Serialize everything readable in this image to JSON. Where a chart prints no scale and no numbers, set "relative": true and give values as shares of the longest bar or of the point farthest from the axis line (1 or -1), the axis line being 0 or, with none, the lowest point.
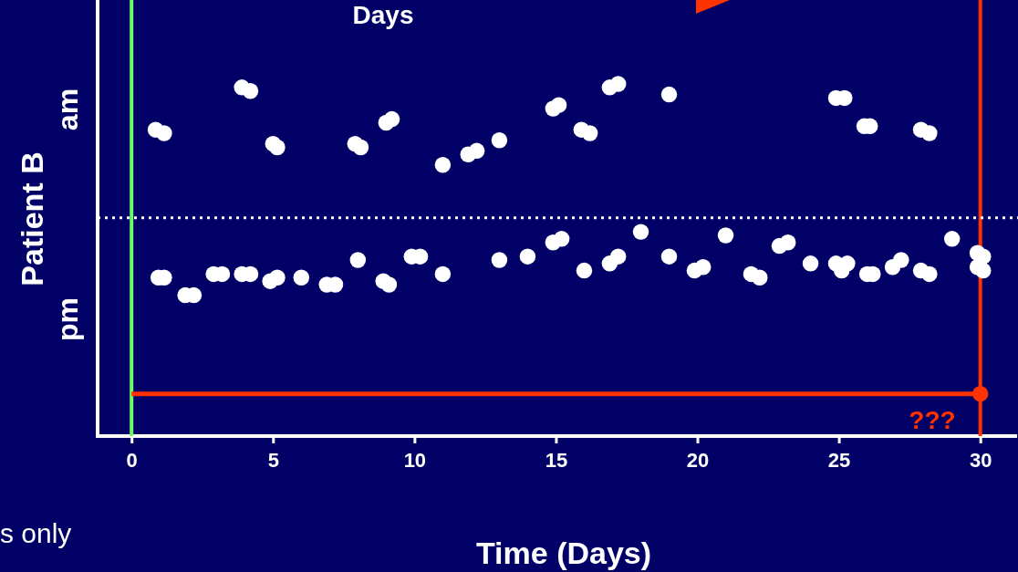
{
  "chart_data": {
    "type": "scatter",
    "title": "Days",
    "xlabel": "Time (Days)",
    "ylabel": "Patient B",
    "relative": true,
    "marker": "circle",
    "xlim": [
      -1.2,
      31.3
    ],
    "xticks": [
      0,
      5,
      10,
      15,
      20,
      25,
      30
    ],
    "annotations": [
      "am",
      "pm",
      "???",
      "s only"
    ],
    "ref_lines": [
      {
        "axis": "x",
        "value": 0,
        "color": "#66ff66",
        "line_style": "solid"
      },
      {
        "axis": "x",
        "value": 30,
        "color": "#ff3300",
        "line_style": "solid"
      },
      {
        "axis": "y",
        "value": 0.62,
        "color": "#ffffff",
        "line_style": "dotted"
      }
    ],
    "series": [
      {
        "type": "scatter",
        "color": "#ffffff",
        "x": [
          0.85,
          1.15,
          3.9,
          4.2,
          5,
          5.15,
          7.9,
          8.1,
          9,
          9.2,
          11,
          11.9,
          12.2,
          13,
          14.9,
          15.1,
          15.9,
          16.2,
          16.9,
          17.2,
          19,
          24.9,
          25.2,
          25.9,
          26.1,
          27.9,
          28.2,
          0.95,
          1.15,
          1.9,
          2.2,
          2.9,
          3.2,
          3.9,
          4.2,
          4.9,
          5.15,
          6,
          6.9,
          7.2,
          8,
          8.9,
          9.1,
          9.9,
          10.2,
          11,
          13,
          14,
          14.9,
          15.2,
          16,
          16.9,
          17.2,
          18,
          19,
          19.9,
          20.2,
          21,
          21.9,
          22.2,
          22.9,
          23.2,
          24,
          24.9,
          25.1,
          25.3,
          26,
          26.2,
          26.9,
          27.2,
          27.9,
          28.2,
          29,
          29.9,
          30.1,
          29.9,
          30.1
        ],
        "values": [
          0.87,
          0.86,
          0.99,
          0.98,
          0.83,
          0.82,
          0.83,
          0.82,
          0.89,
          0.9,
          0.77,
          0.8,
          0.81,
          0.84,
          0.93,
          0.94,
          0.87,
          0.86,
          0.99,
          1,
          0.97,
          0.96,
          0.96,
          0.88,
          0.88,
          0.87,
          0.86,
          0.45,
          0.45,
          0.4,
          0.4,
          0.46,
          0.46,
          0.46,
          0.46,
          0.44,
          0.45,
          0.45,
          0.43,
          0.43,
          0.5,
          0.44,
          0.43,
          0.51,
          0.51,
          0.46,
          0.5,
          0.51,
          0.55,
          0.56,
          0.47,
          0.49,
          0.51,
          0.58,
          0.51,
          0.47,
          0.48,
          0.57,
          0.46,
          0.45,
          0.54,
          0.55,
          0.49,
          0.49,
          0.47,
          0.49,
          0.46,
          0.46,
          0.48,
          0.5,
          0.47,
          0.46,
          0.56,
          0.52,
          0.51,
          0.48,
          0.47
        ]
      },
      {
        "type": "line",
        "color": "#ff3300",
        "marker": "none",
        "x": [
          0,
          30
        ],
        "values": [
          0.12,
          0.12
        ]
      },
      {
        "type": "scatter",
        "color": "#ff3300",
        "x": [
          30
        ],
        "values": [
          0.12
        ]
      }
    ]
  }
}
